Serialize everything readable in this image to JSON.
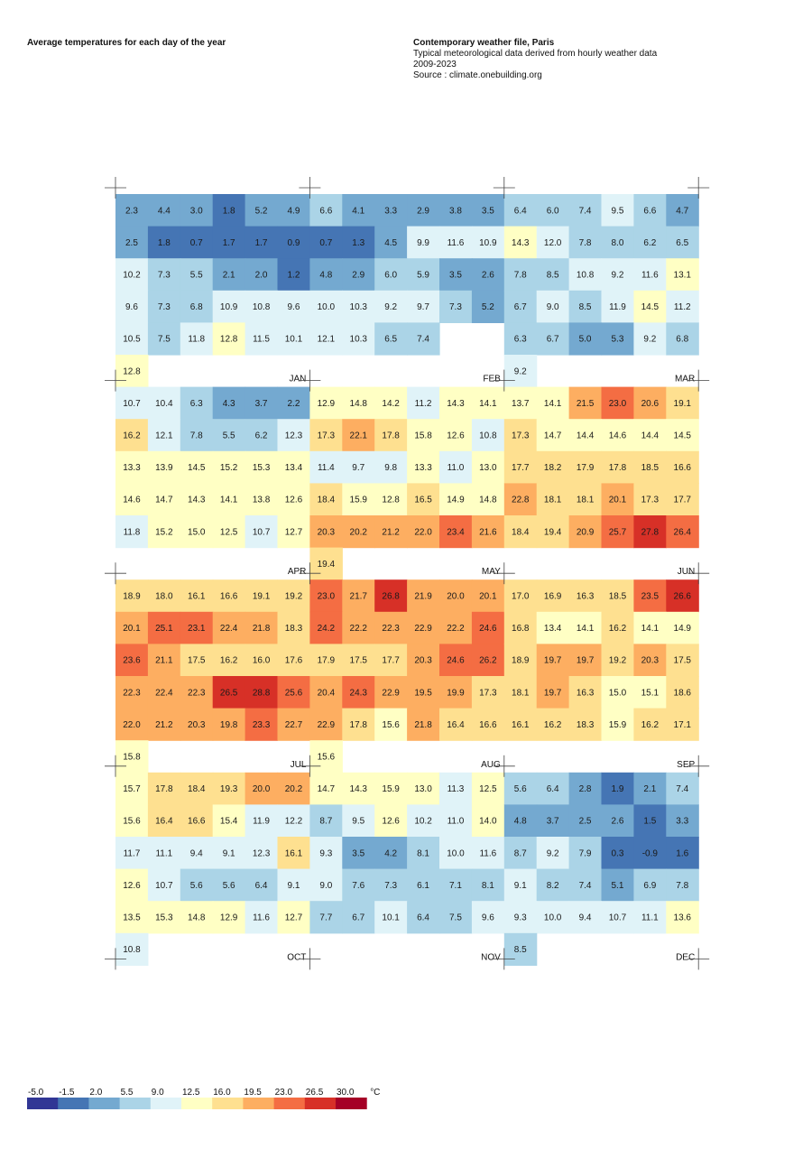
{
  "header": {
    "left_title": "Average temperatures for each day of the year",
    "right_title": "Contemporary weather file, Paris",
    "right_line1": "Typical meteorological data derived from hourly weather data",
    "right_line2": "2009-2023",
    "right_line3": "Source : climate.onebuilding.org"
  },
  "chart_data": {
    "type": "heatmap",
    "title": "Average temperatures for each day of the year",
    "unit": "°C",
    "months": [
      {
        "name": "JAN",
        "values": [
          2.3,
          4.4,
          3.0,
          1.8,
          5.2,
          4.9,
          2.5,
          1.8,
          0.7,
          1.7,
          1.7,
          0.9,
          10.2,
          7.3,
          5.5,
          2.1,
          2.0,
          1.2,
          9.6,
          7.3,
          6.8,
          10.9,
          10.8,
          9.6,
          10.5,
          7.5,
          11.8,
          12.8,
          11.5,
          10.1,
          12.8
        ]
      },
      {
        "name": "FEB",
        "values": [
          6.6,
          4.1,
          3.3,
          2.9,
          3.8,
          3.5,
          0.7,
          1.3,
          4.5,
          9.9,
          11.6,
          10.9,
          4.8,
          2.9,
          6.0,
          5.9,
          3.5,
          2.6,
          10.0,
          10.3,
          9.2,
          9.7,
          7.3,
          5.2,
          12.1,
          10.3,
          6.5,
          7.4
        ]
      },
      {
        "name": "MAR",
        "values": [
          6.4,
          6.0,
          7.4,
          9.5,
          6.6,
          4.7,
          14.3,
          12.0,
          7.8,
          8.0,
          6.2,
          6.5,
          7.8,
          8.5,
          10.8,
          9.2,
          11.6,
          13.1,
          6.7,
          9.0,
          8.5,
          11.9,
          14.5,
          11.2,
          6.3,
          6.7,
          5.0,
          5.3,
          9.2,
          6.8,
          9.2
        ]
      },
      {
        "name": "APR",
        "values": [
          10.7,
          10.4,
          6.3,
          4.3,
          3.7,
          2.2,
          16.2,
          12.1,
          7.8,
          5.5,
          6.2,
          12.3,
          13.3,
          13.9,
          14.5,
          15.2,
          15.3,
          13.4,
          14.6,
          14.7,
          14.3,
          14.1,
          13.8,
          12.6,
          11.8,
          15.2,
          15.0,
          12.5,
          10.7,
          12.7
        ]
      },
      {
        "name": "MAY",
        "values": [
          12.9,
          14.8,
          14.2,
          11.2,
          14.3,
          14.1,
          17.3,
          22.1,
          17.8,
          15.8,
          12.6,
          10.8,
          11.4,
          9.7,
          9.8,
          13.3,
          11.0,
          13.0,
          18.4,
          15.9,
          12.8,
          16.5,
          14.9,
          14.8,
          20.3,
          20.2,
          21.2,
          22.0,
          23.4,
          21.6,
          19.4
        ]
      },
      {
        "name": "JUN",
        "values": [
          13.7,
          14.1,
          21.5,
          23.0,
          20.6,
          19.1,
          17.3,
          14.7,
          14.4,
          14.6,
          14.4,
          14.5,
          17.7,
          18.2,
          17.9,
          17.8,
          18.5,
          16.6,
          22.8,
          18.1,
          18.1,
          20.1,
          17.3,
          17.7,
          18.4,
          19.4,
          20.9,
          25.7,
          27.8,
          26.4
        ]
      },
      {
        "name": "JUL",
        "values": [
          18.9,
          18.0,
          16.1,
          16.6,
          19.1,
          19.2,
          20.1,
          25.1,
          23.1,
          22.4,
          21.8,
          18.3,
          23.6,
          21.1,
          17.5,
          16.2,
          16.0,
          17.6,
          22.3,
          22.4,
          22.3,
          26.5,
          28.8,
          25.6,
          22.0,
          21.2,
          20.3,
          19.8,
          23.3,
          22.7,
          15.8
        ]
      },
      {
        "name": "AUG",
        "values": [
          23.0,
          21.7,
          26.8,
          21.9,
          20.0,
          20.1,
          24.2,
          22.2,
          22.3,
          22.9,
          22.2,
          24.6,
          17.9,
          17.5,
          17.7,
          20.3,
          24.6,
          26.2,
          20.4,
          24.3,
          22.9,
          19.5,
          19.9,
          17.3,
          22.9,
          17.8,
          15.6,
          21.8,
          16.4,
          16.6,
          15.6
        ]
      },
      {
        "name": "SEP",
        "values": [
          17.0,
          16.9,
          16.3,
          18.5,
          23.5,
          26.6,
          16.8,
          13.4,
          14.1,
          16.2,
          14.1,
          14.9,
          18.9,
          19.7,
          19.7,
          19.2,
          20.3,
          17.5,
          18.1,
          19.7,
          16.3,
          15.0,
          15.1,
          18.6,
          16.1,
          16.2,
          18.3,
          15.9,
          16.2,
          17.1
        ]
      },
      {
        "name": "OCT",
        "values": [
          15.7,
          17.8,
          18.4,
          19.3,
          20.0,
          20.2,
          15.6,
          16.4,
          16.6,
          15.4,
          11.9,
          12.2,
          11.7,
          11.1,
          9.4,
          9.1,
          12.3,
          16.1,
          12.6,
          10.7,
          5.6,
          5.6,
          6.4,
          9.1,
          13.5,
          15.3,
          14.8,
          12.9,
          11.6,
          12.7,
          10.8
        ]
      },
      {
        "name": "NOV",
        "values": [
          14.7,
          14.3,
          15.9,
          13.0,
          11.3,
          12.5,
          8.7,
          9.5,
          12.6,
          10.2,
          11.0,
          14.0,
          9.3,
          3.5,
          4.2,
          8.1,
          10.0,
          11.6,
          9.0,
          7.6,
          7.3,
          6.1,
          7.1,
          8.1,
          7.7,
          6.7,
          10.1,
          6.4,
          7.5,
          9.6
        ]
      },
      {
        "name": "DEC",
        "values": [
          5.6,
          6.4,
          2.8,
          1.9,
          2.1,
          7.4,
          4.8,
          3.7,
          2.5,
          2.6,
          1.5,
          3.3,
          8.7,
          9.2,
          7.9,
          0.3,
          -0.9,
          1.6,
          9.1,
          8.2,
          7.4,
          5.1,
          6.9,
          7.8,
          9.3,
          10.0,
          9.4,
          10.7,
          11.1,
          13.6,
          8.5
        ]
      }
    ],
    "legend": {
      "ticks": [
        "-5.0",
        "-1.5",
        "2.0",
        "5.5",
        "9.0",
        "12.5",
        "16.0",
        "19.5",
        "23.0",
        "26.5",
        "30.0"
      ],
      "thresholds": [
        -5.0,
        -1.5,
        2.0,
        5.5,
        9.0,
        12.5,
        16.0,
        19.5,
        23.0,
        26.5,
        30.0
      ],
      "unit": "°C",
      "colors": [
        "#313695",
        "#4575b4",
        "#74a9d0",
        "#abd4e7",
        "#e0f3f8",
        "#ffffc4",
        "#fee090",
        "#fdae61",
        "#f46d43",
        "#d73027",
        "#a50026"
      ]
    }
  }
}
